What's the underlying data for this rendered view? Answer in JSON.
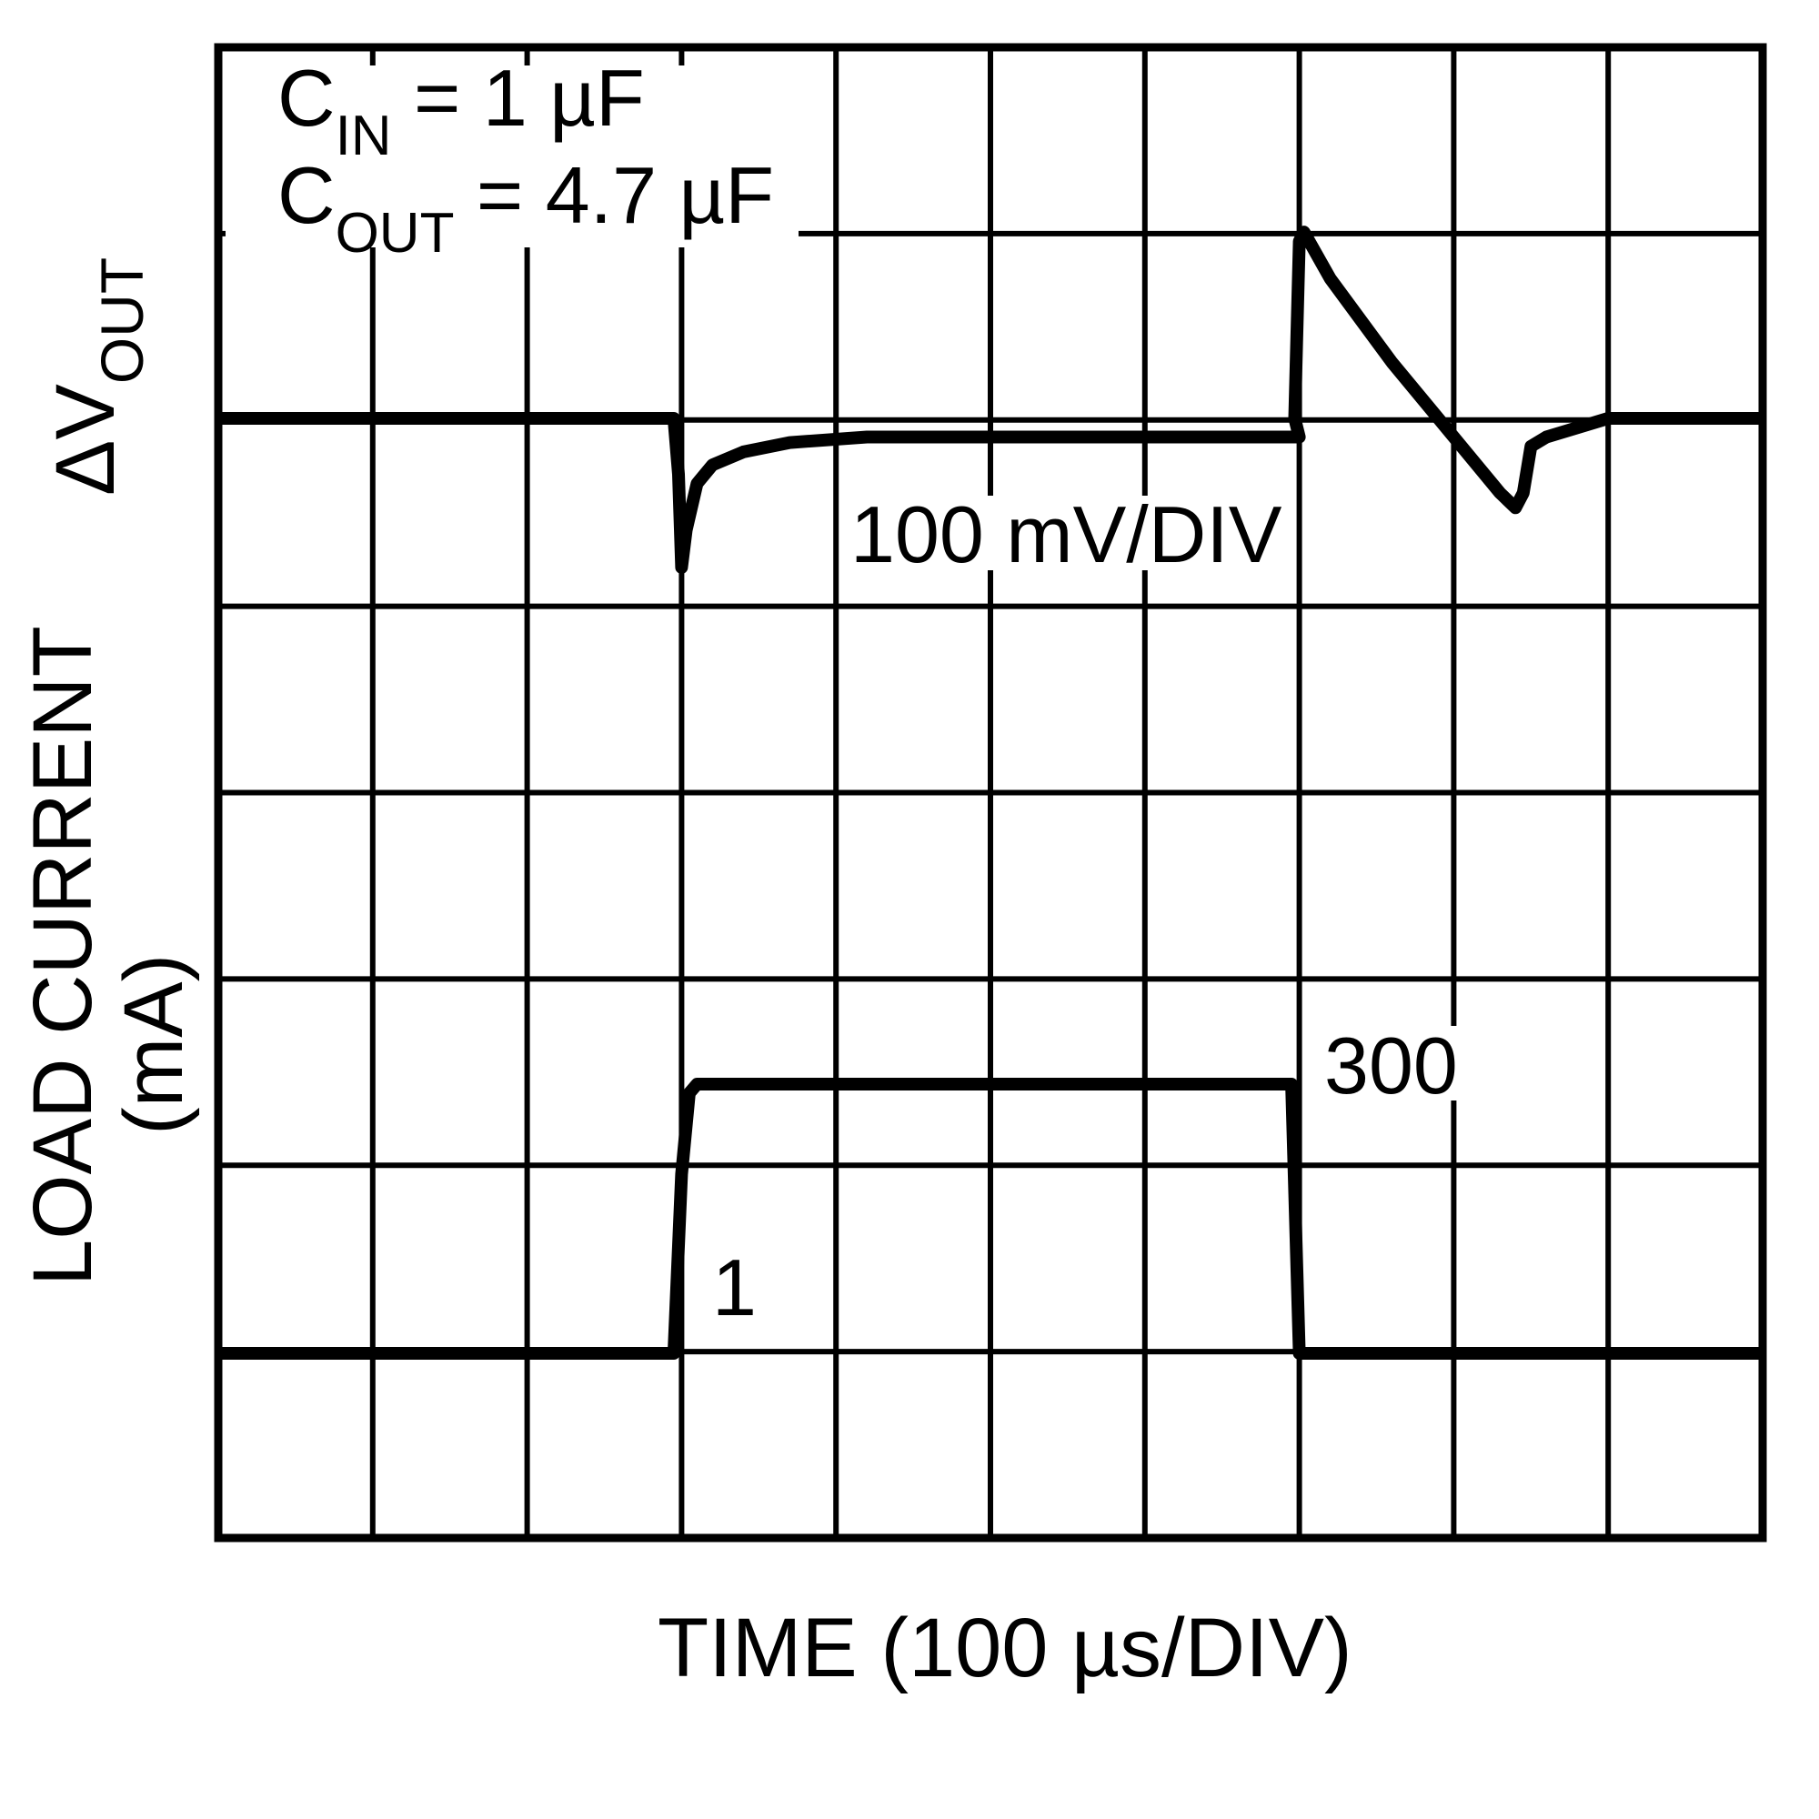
{
  "chart_data": {
    "type": "line",
    "title": "",
    "subtitle": "",
    "xlabel": "TIME (100 µs/DIV)",
    "ylabel_top": {
      "main": "ΔV",
      "sub": "OUT"
    },
    "ylabel_bottom": {
      "line1": "LOAD CURRENT",
      "line2": "(mA)"
    },
    "grid": {
      "on": true,
      "x_divisions": 10,
      "y_divisions": 8
    },
    "x_unit_per_div": "100 µs",
    "xlim_us": [
      0,
      1000
    ],
    "annotations": {
      "cin": {
        "main": "C",
        "sub": "IN",
        "rest": " = 1 µF"
      },
      "cout": {
        "main": "C",
        "sub": "OUT",
        "rest": " = 4.7 µF"
      },
      "vout_scale": "100 mV/DIV",
      "current_high": "300",
      "current_low": "1"
    },
    "series": [
      {
        "name": "ΔVOUT",
        "unit": "mV (relative, 100 mV/DIV)",
        "time_us": [
          0,
          295,
          298,
          300,
          303,
          310,
          320,
          340,
          370,
          420,
          500,
          600,
          700,
          697,
          700,
          703,
          720,
          760,
          800,
          830,
          840,
          845,
          850,
          860,
          900,
          1000
        ],
        "values_mv": [
          0,
          0,
          -30,
          -80,
          -60,
          -35,
          -25,
          -18,
          -13,
          -10,
          -10,
          -10,
          -10,
          0,
          95,
          100,
          75,
          30,
          -10,
          -40,
          -48,
          -40,
          -15,
          -10,
          0,
          0
        ]
      },
      {
        "name": "Load Current",
        "unit": "mA",
        "time_us": [
          0,
          295,
          300,
          305,
          310,
          400,
          695,
          700,
          1000
        ],
        "values_ma": [
          1,
          1,
          200,
          290,
          300,
          300,
          300,
          1,
          1
        ]
      }
    ]
  }
}
